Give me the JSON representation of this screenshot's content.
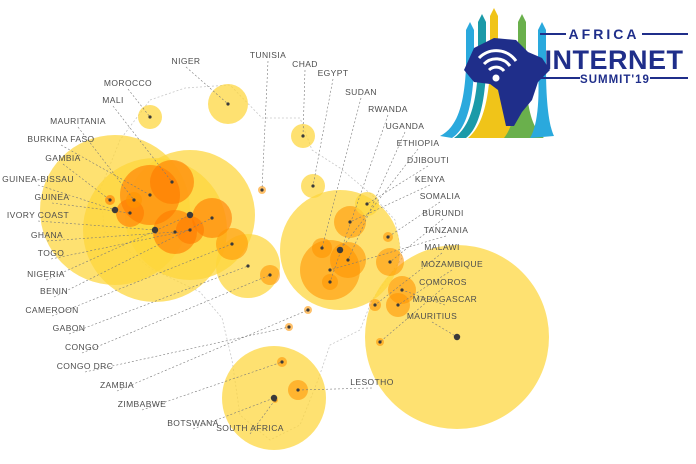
{
  "logo": {
    "line1": "AFRICA",
    "line2": "INTERNET",
    "line3": "SUMMIT'19",
    "colors": {
      "navy": "#1f2e8a",
      "sky": "#2aa9dd",
      "yellow": "#f0c419",
      "green": "#6ab04c",
      "teal": "#1b9aa8"
    }
  },
  "bubble_colors": {
    "yellow": "#fdd63a",
    "orange": "#ff9500",
    "deep_orange": "#ff7a00",
    "dot": "#3a3a3a"
  },
  "countries": [
    {
      "name": "NIGER"
    },
    {
      "name": "TUNISIA"
    },
    {
      "name": "CHAD"
    },
    {
      "name": "EGYPT"
    },
    {
      "name": "MOROCCO"
    },
    {
      "name": "SUDAN"
    },
    {
      "name": "MALI"
    },
    {
      "name": "RWANDA"
    },
    {
      "name": "MAURITANIA"
    },
    {
      "name": "UGANDA"
    },
    {
      "name": "BURKINA FASO"
    },
    {
      "name": "ETHIOPIA"
    },
    {
      "name": "GAMBIA"
    },
    {
      "name": "DJIBOUTI"
    },
    {
      "name": "GUINEA-BISSAU"
    },
    {
      "name": "KENYA"
    },
    {
      "name": "GUINEA"
    },
    {
      "name": "SOMALIA"
    },
    {
      "name": "IVORY COAST"
    },
    {
      "name": "BURUNDI"
    },
    {
      "name": "GHANA"
    },
    {
      "name": "TANZANIA"
    },
    {
      "name": "TOGO"
    },
    {
      "name": "MALAWI"
    },
    {
      "name": "NIGERIA"
    },
    {
      "name": "MOZAMBIQUE"
    },
    {
      "name": "BENIN"
    },
    {
      "name": "COMOROS"
    },
    {
      "name": "CAMEROON"
    },
    {
      "name": "MADAGASCAR"
    },
    {
      "name": "GABON"
    },
    {
      "name": "MAURITIUS"
    },
    {
      "name": "CONGO"
    },
    {
      "name": "CONGO DRC"
    },
    {
      "name": "ZAMBIA"
    },
    {
      "name": "LESOTHO"
    },
    {
      "name": "ZIMBABWE"
    },
    {
      "name": "BOTSWANA"
    },
    {
      "name": "SOUTH AFRICA"
    }
  ]
}
